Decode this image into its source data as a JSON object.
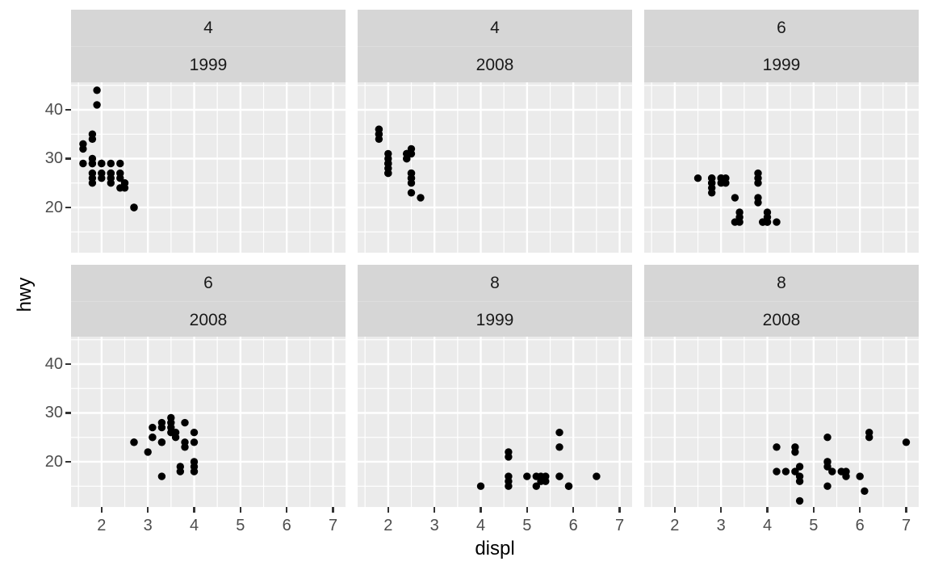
{
  "chart_data": {
    "type": "scatter",
    "title": "",
    "xlabel": "displ",
    "ylabel": "hwy",
    "legend": "none",
    "grid": "white major and minor gridlines on grey panels",
    "point_color": "#000000",
    "x_ticks": [
      2,
      3,
      4,
      5,
      6,
      7
    ],
    "y_ticks": [
      40,
      30,
      20
    ],
    "x_minor": [
      1.5,
      2.5,
      3.5,
      4.5,
      5.5,
      6.5
    ],
    "y_minor": [
      15,
      25,
      35,
      45
    ],
    "xlim": [
      1.34,
      7.27
    ],
    "ylim": [
      10.74,
      45.62
    ],
    "facet_layout": "2 rows x 3 cols, strips show cyl (top) and year (bottom)",
    "facets": [
      {
        "strip_top": "4",
        "strip_bottom": "1999",
        "points": [
          [
            1.6,
            33
          ],
          [
            1.6,
            32
          ],
          [
            1.6,
            29
          ],
          [
            1.8,
            35
          ],
          [
            1.8,
            34
          ],
          [
            1.8,
            30
          ],
          [
            1.8,
            29
          ],
          [
            1.8,
            29
          ],
          [
            1.8,
            27
          ],
          [
            1.8,
            26
          ],
          [
            1.8,
            25
          ],
          [
            1.9,
            44
          ],
          [
            1.9,
            41
          ],
          [
            2.0,
            29
          ],
          [
            2.0,
            29
          ],
          [
            2.0,
            27
          ],
          [
            2.0,
            26
          ],
          [
            2.2,
            29
          ],
          [
            2.2,
            27
          ],
          [
            2.2,
            27
          ],
          [
            2.2,
            26
          ],
          [
            2.2,
            25
          ],
          [
            2.4,
            29
          ],
          [
            2.4,
            27
          ],
          [
            2.4,
            26
          ],
          [
            2.4,
            24
          ],
          [
            2.5,
            25
          ],
          [
            2.5,
            25
          ],
          [
            2.5,
            24
          ],
          [
            2.7,
            20
          ],
          [
            2.7,
            20
          ]
        ]
      },
      {
        "strip_top": "4",
        "strip_bottom": "2008",
        "points": [
          [
            1.8,
            36
          ],
          [
            1.8,
            36
          ],
          [
            1.8,
            35
          ],
          [
            1.8,
            35
          ],
          [
            1.8,
            34
          ],
          [
            2.0,
            31
          ],
          [
            2.0,
            30
          ],
          [
            2.0,
            29
          ],
          [
            2.0,
            29
          ],
          [
            2.0,
            29
          ],
          [
            2.0,
            28
          ],
          [
            2.0,
            27
          ],
          [
            2.0,
            27
          ],
          [
            2.4,
            31
          ],
          [
            2.4,
            31
          ],
          [
            2.4,
            31
          ],
          [
            2.4,
            30
          ],
          [
            2.4,
            30
          ],
          [
            2.5,
            32
          ],
          [
            2.5,
            31
          ],
          [
            2.5,
            27
          ],
          [
            2.5,
            27
          ],
          [
            2.5,
            26
          ],
          [
            2.5,
            26
          ],
          [
            2.5,
            25
          ],
          [
            2.5,
            23
          ],
          [
            2.7,
            22
          ]
        ]
      },
      {
        "strip_top": "6",
        "strip_bottom": "1999",
        "points": [
          [
            2.5,
            26
          ],
          [
            2.8,
            26
          ],
          [
            2.8,
            26
          ],
          [
            2.8,
            25
          ],
          [
            2.8,
            25
          ],
          [
            2.8,
            24
          ],
          [
            2.8,
            23
          ],
          [
            3.0,
            26
          ],
          [
            3.0,
            26
          ],
          [
            3.0,
            26
          ],
          [
            3.0,
            25
          ],
          [
            3.1,
            26
          ],
          [
            3.1,
            25
          ],
          [
            3.3,
            22
          ],
          [
            3.3,
            17
          ],
          [
            3.4,
            19
          ],
          [
            3.4,
            18
          ],
          [
            3.4,
            17
          ],
          [
            3.8,
            27
          ],
          [
            3.8,
            26
          ],
          [
            3.8,
            25
          ],
          [
            3.8,
            22
          ],
          [
            3.8,
            21
          ],
          [
            3.9,
            17
          ],
          [
            3.9,
            17
          ],
          [
            4.0,
            19
          ],
          [
            4.0,
            18
          ],
          [
            4.0,
            17
          ],
          [
            4.0,
            17
          ],
          [
            4.2,
            17
          ]
        ]
      },
      {
        "strip_top": "6",
        "strip_bottom": "2008",
        "points": [
          [
            2.7,
            24
          ],
          [
            2.7,
            24
          ],
          [
            3.0,
            22
          ],
          [
            3.1,
            27
          ],
          [
            3.1,
            25
          ],
          [
            3.1,
            25
          ],
          [
            3.3,
            28
          ],
          [
            3.3,
            27
          ],
          [
            3.3,
            24
          ],
          [
            3.3,
            24
          ],
          [
            3.3,
            17
          ],
          [
            3.5,
            29
          ],
          [
            3.5,
            28
          ],
          [
            3.5,
            27
          ],
          [
            3.5,
            26
          ],
          [
            3.6,
            26
          ],
          [
            3.6,
            25
          ],
          [
            3.7,
            19
          ],
          [
            3.7,
            18
          ],
          [
            3.8,
            28
          ],
          [
            3.8,
            24
          ],
          [
            3.8,
            23
          ],
          [
            4.0,
            26
          ],
          [
            4.0,
            24
          ],
          [
            4.0,
            20
          ],
          [
            4.0,
            19
          ],
          [
            4.0,
            18
          ]
        ]
      },
      {
        "strip_top": "8",
        "strip_bottom": "1999",
        "points": [
          [
            4.0,
            15
          ],
          [
            4.6,
            22
          ],
          [
            4.6,
            21
          ],
          [
            4.6,
            17
          ],
          [
            4.6,
            16
          ],
          [
            4.6,
            15
          ],
          [
            5.0,
            17
          ],
          [
            5.2,
            17
          ],
          [
            5.2,
            15
          ],
          [
            5.3,
            17
          ],
          [
            5.3,
            16
          ],
          [
            5.4,
            17
          ],
          [
            5.4,
            16
          ],
          [
            5.7,
            26
          ],
          [
            5.7,
            23
          ],
          [
            5.7,
            17
          ],
          [
            5.7,
            17
          ],
          [
            5.9,
            15
          ],
          [
            5.9,
            15
          ],
          [
            6.5,
            17
          ]
        ]
      },
      {
        "strip_top": "8",
        "strip_bottom": "2008",
        "points": [
          [
            4.2,
            23
          ],
          [
            4.2,
            18
          ],
          [
            4.4,
            18
          ],
          [
            4.6,
            23
          ],
          [
            4.6,
            22
          ],
          [
            4.6,
            18
          ],
          [
            4.7,
            19
          ],
          [
            4.7,
            17
          ],
          [
            4.7,
            16
          ],
          [
            4.7,
            12
          ],
          [
            5.3,
            25
          ],
          [
            5.3,
            20
          ],
          [
            5.3,
            20
          ],
          [
            5.3,
            19
          ],
          [
            5.3,
            15
          ],
          [
            5.4,
            18
          ],
          [
            5.6,
            18
          ],
          [
            5.7,
            18
          ],
          [
            5.7,
            17
          ],
          [
            6.0,
            17
          ],
          [
            6.1,
            14
          ],
          [
            6.2,
            26
          ],
          [
            6.2,
            25
          ],
          [
            7.0,
            24
          ]
        ]
      }
    ]
  },
  "colors": {
    "background": "#ffffff",
    "panel_bg": "#ebebeb",
    "strip_bg": "#d6d6d6",
    "grid": "#ffffff",
    "point": "#000000",
    "tick": "#333333",
    "tick_label": "#4d4d4d",
    "strip_text": "#1a1a1a",
    "axis_title": "#000000"
  }
}
